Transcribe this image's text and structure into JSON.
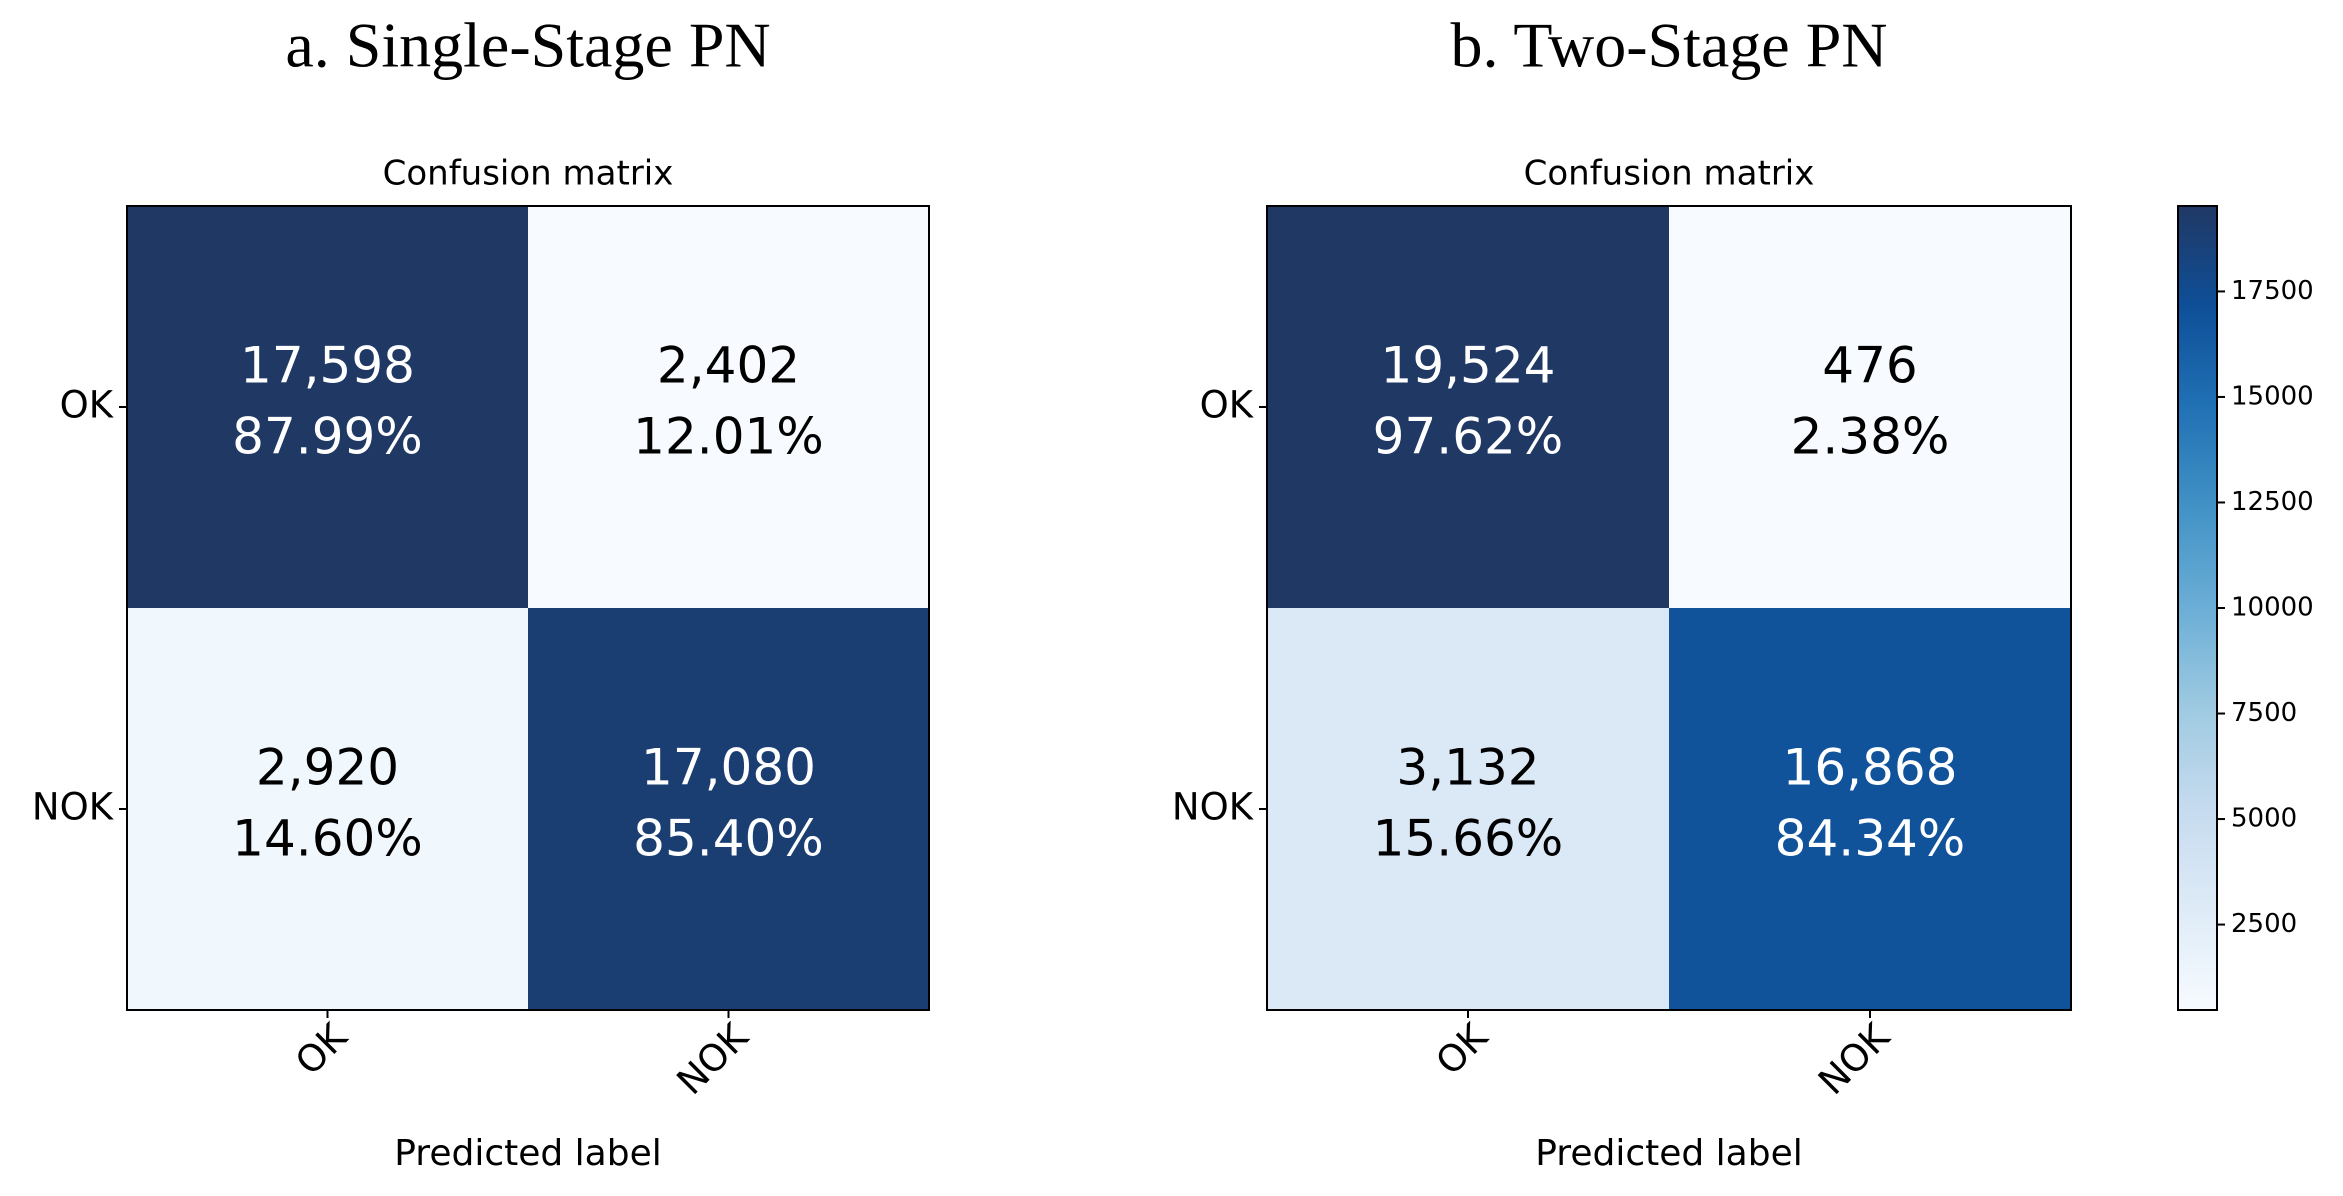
{
  "chart_data": [
    {
      "type": "heatmap",
      "title": "a. Single-Stage PN",
      "subtitle": "Confusion matrix",
      "x_label": "Predicted label",
      "x_categories": [
        "OK",
        "NOK"
      ],
      "y_categories": [
        "OK",
        "NOK"
      ],
      "values": [
        [
          17598,
          2402
        ],
        [
          2920,
          17080
        ]
      ],
      "value_labels": [
        [
          "17,598",
          "2,402"
        ],
        [
          "2,920",
          "17,080"
        ]
      ],
      "percents": [
        [
          87.99,
          12.01
        ],
        [
          14.6,
          85.4
        ]
      ],
      "percent_labels": [
        [
          "87.99%",
          "12.01%"
        ],
        [
          "14.60%",
          "85.40%"
        ]
      ],
      "clim": [
        2402,
        17598
      ],
      "colormap": [
        "#f7fbff",
        "#deebf7",
        "#c6dbef",
        "#9ecae1",
        "#6baed6",
        "#4292c6",
        "#2171b5",
        "#0e4f98",
        "#203864"
      ],
      "colorbar": false
    },
    {
      "type": "heatmap",
      "title": "b. Two-Stage PN",
      "subtitle": "Confusion matrix",
      "x_label": "Predicted label",
      "x_categories": [
        "OK",
        "NOK"
      ],
      "y_categories": [
        "OK",
        "NOK"
      ],
      "values": [
        [
          19524,
          476
        ],
        [
          3132,
          16868
        ]
      ],
      "value_labels": [
        [
          "19,524",
          "476"
        ],
        [
          "3,132",
          "16,868"
        ]
      ],
      "percents": [
        [
          97.62,
          2.38
        ],
        [
          15.66,
          84.34
        ]
      ],
      "percent_labels": [
        [
          "97.62%",
          "2.38%"
        ],
        [
          "15.66%",
          "84.34%"
        ]
      ],
      "clim": [
        476,
        19524
      ],
      "colormap": [
        "#f7fbff",
        "#deebf7",
        "#c6dbef",
        "#9ecae1",
        "#6baed6",
        "#4292c6",
        "#2171b5",
        "#0e4f98",
        "#203864"
      ],
      "colorbar": true,
      "cticks": [
        2500,
        5000,
        7500,
        10000,
        12500,
        15000,
        17500
      ]
    }
  ]
}
